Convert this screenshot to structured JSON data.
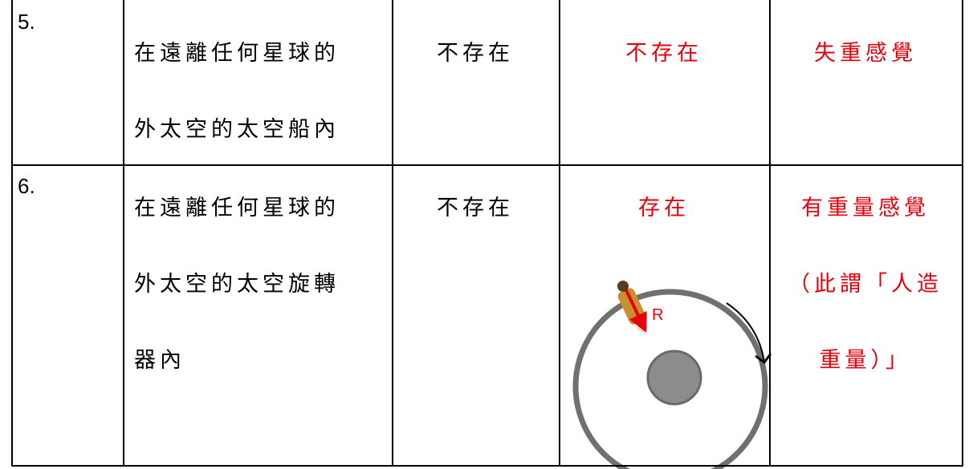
{
  "table": {
    "rows": [
      {
        "number": "5.",
        "place": [
          "在遠離任何星球的",
          "外太空的太空船內"
        ],
        "gravity": "不存在",
        "support": "不存在",
        "feeling": [
          "失重感覺"
        ]
      },
      {
        "number": "6.",
        "place": [
          "在遠離任何星球的",
          "外太空的太空旋轉",
          "器內"
        ],
        "gravity": "不存在",
        "support": "存在",
        "feeling": [
          "有重量感覺",
          "（此謂「人造",
          "重量）」"
        ],
        "diagram_label": "R"
      }
    ]
  }
}
